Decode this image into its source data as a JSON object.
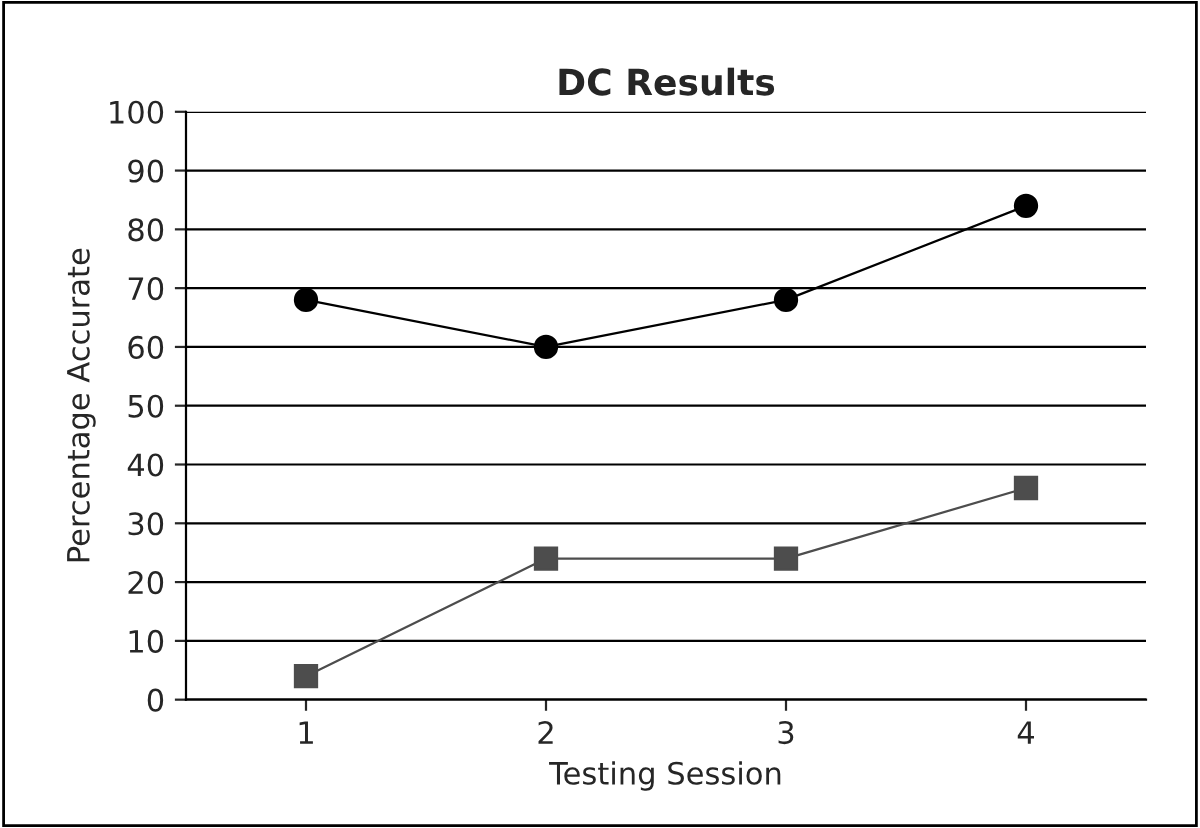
{
  "chart_data": {
    "type": "line",
    "title": "DC Results",
    "xlabel": "Testing Session",
    "ylabel": "Percentage Accurate",
    "categories": [
      "1",
      "2",
      "3",
      "4"
    ],
    "series": [
      {
        "color": "#000000",
        "values": [
          68,
          60,
          68,
          84
        ],
        "marker": "circle"
      },
      {
        "color": "#4d4d4d",
        "values": [
          4,
          24,
          24,
          36
        ],
        "marker": "square"
      }
    ],
    "ylim": [
      0,
      100
    ],
    "yticks": [
      0,
      10,
      20,
      30,
      40,
      50,
      60,
      70,
      80,
      90,
      100
    ],
    "grid": "y",
    "legend": false,
    "line_style": "solid"
  }
}
